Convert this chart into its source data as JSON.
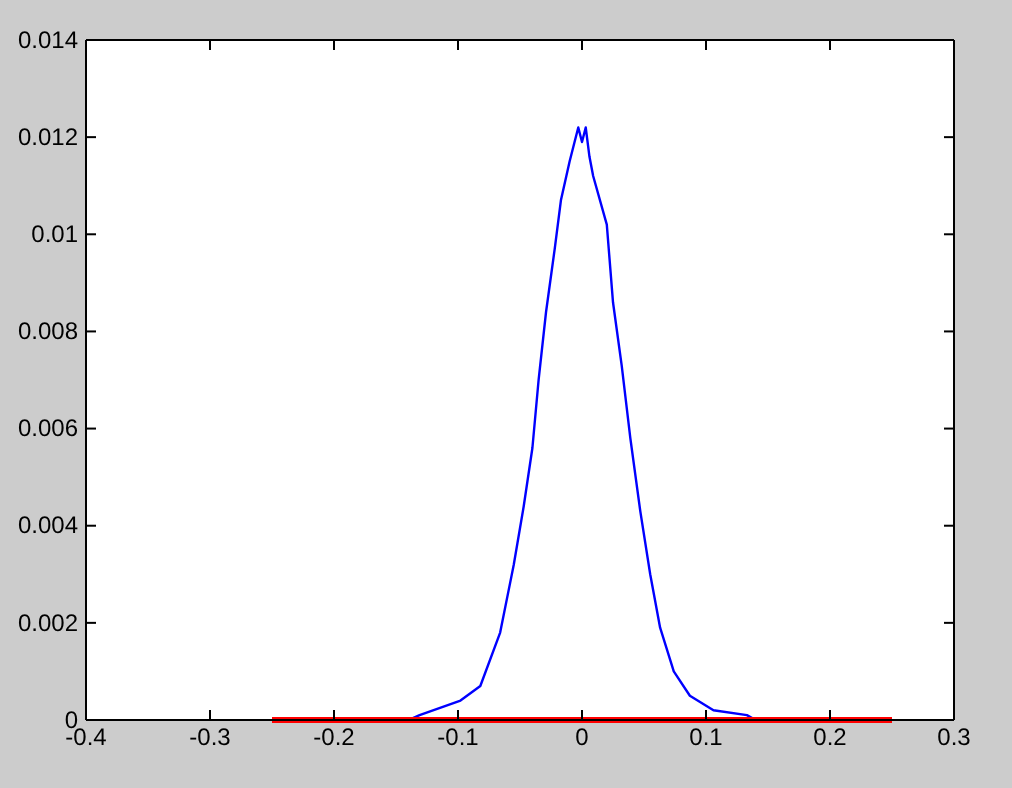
{
  "chart_data": {
    "type": "line",
    "xlim": [
      -0.4,
      0.3
    ],
    "ylim": [
      0,
      0.014
    ],
    "xticks": [
      -0.4,
      -0.3,
      -0.2,
      -0.1,
      0,
      0.1,
      0.2,
      0.3
    ],
    "yticks": [
      0,
      0.002,
      0.004,
      0.006,
      0.008,
      0.01,
      0.012,
      0.014
    ],
    "grid": false,
    "marker": "none",
    "line_style": "solid",
    "series": [
      {
        "color": "#0000ff",
        "x": [
          -0.14,
          -0.131,
          -0.098,
          -0.082,
          -0.066,
          -0.055,
          -0.047,
          -0.04,
          -0.035,
          -0.029,
          -0.022,
          -0.017,
          -0.01,
          -0.006,
          -0.003,
          0,
          0.003,
          0.006,
          0.009,
          0.02,
          0.025,
          0.032,
          0.039,
          0.047,
          0.055,
          0.063,
          0.074,
          0.087,
          0.106,
          0.133,
          0.14
        ],
        "values": [
          0,
          0.0001,
          0.0004,
          0.0007,
          0.0018,
          0.0032,
          0.0044,
          0.0056,
          0.007,
          0.0084,
          0.0097,
          0.0107,
          0.0115,
          0.0119,
          0.0122,
          0.0119,
          0.0122,
          0.0116,
          0.0112,
          0.0102,
          0.0086,
          0.0073,
          0.0058,
          0.0043,
          0.003,
          0.0019,
          0.001,
          0.0005,
          0.0002,
          0.0001,
          0
        ]
      },
      {
        "color": "#ff0000",
        "x": [
          -0.25,
          0.25
        ],
        "values": [
          0,
          0
        ]
      }
    ]
  }
}
